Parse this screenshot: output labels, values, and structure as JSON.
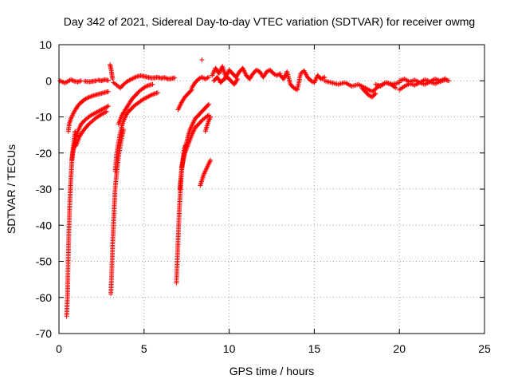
{
  "chart_data": {
    "type": "scatter",
    "title": "Day 342 of 2021, Sidereal Day-to-day VTEC variation (SDTVAR) for receiver owmg",
    "xlabel": "GPS time / hours",
    "ylabel": "SDTVAR / TECUs",
    "xlim": [
      0,
      25
    ],
    "ylim": [
      -70,
      10
    ],
    "xticks": [
      0,
      5,
      10,
      15,
      20,
      25
    ],
    "yticks": [
      10,
      0,
      -10,
      -20,
      -30,
      -40,
      -50,
      -60,
      -70
    ],
    "grid": true,
    "marker": "plus",
    "series": [
      {
        "name": "SDTVAR",
        "color": "#ff0000",
        "segments": [
          {
            "x": [
              0.05,
              0.2,
              0.35,
              0.5,
              0.7,
              0.9,
              1.1,
              1.3
            ],
            "y": [
              0.0,
              -0.3,
              -0.6,
              -0.2,
              0.3,
              -0.1,
              -0.3,
              0.0
            ]
          },
          {
            "x": [
              1.5,
              1.8,
              2.0,
              2.2
            ],
            "y": [
              -0.1,
              -0.3,
              -0.1,
              0.0
            ]
          },
          {
            "x": [
              2.3,
              2.5,
              2.7,
              2.9
            ],
            "y": [
              0.2,
              0.0,
              0.3,
              0.1
            ]
          },
          {
            "x": [
              0.45,
              0.5,
              0.52,
              0.55,
              0.58,
              0.62,
              0.66,
              0.7,
              0.75,
              0.8,
              0.85,
              0.9,
              0.95
            ],
            "y": [
              -65.2,
              -60.0,
              -55.0,
              -48.0,
              -42.0,
              -36.0,
              -31.0,
              -27.0,
              -23.0,
              -20.0,
              -18.0,
              -16.0,
              -14.0
            ]
          },
          {
            "x": [
              0.55,
              0.6,
              0.7,
              0.8,
              0.9,
              1.0,
              1.1,
              1.2,
              1.35,
              1.5,
              1.7,
              1.9,
              2.1,
              2.3,
              2.5,
              2.7,
              2.9
            ],
            "y": [
              -14.0,
              -12.0,
              -10.5,
              -9.5,
              -8.5,
              -7.8,
              -7.0,
              -6.4,
              -5.8,
              -5.2,
              -4.7,
              -4.3,
              -4.0,
              -3.7,
              -3.5,
              -3.2,
              -3.0
            ]
          },
          {
            "x": [
              0.75,
              0.85,
              0.95,
              1.05,
              1.15,
              1.3,
              1.5,
              1.7,
              1.9,
              2.1,
              2.3,
              2.5,
              2.7,
              2.9
            ],
            "y": [
              -22.0,
              -19.0,
              -17.0,
              -15.0,
              -13.5,
              -12.0,
              -11.0,
              -10.2,
              -9.5,
              -9.0,
              -8.5,
              -8.0,
              -7.5,
              -7.0
            ]
          },
          {
            "x": [
              1.0,
              1.2,
              1.4,
              1.6,
              1.8,
              2.0,
              2.2,
              2.4,
              2.6,
              2.8
            ],
            "y": [
              -18.0,
              -15.5,
              -14.0,
              -12.8,
              -11.8,
              -11.0,
              -10.2,
              -9.6,
              -9.0,
              -8.5
            ]
          },
          {
            "x": [
              3.0,
              3.05,
              3.1,
              3.15
            ],
            "y": [
              4.5,
              3.5,
              2.0,
              0.5
            ]
          },
          {
            "x": [
              3.05,
              3.1,
              3.15,
              3.2,
              3.25,
              3.3,
              3.4,
              3.5,
              3.6,
              3.7,
              3.8
            ],
            "y": [
              -59.0,
              -53.0,
              -46.0,
              -40.0,
              -35.0,
              -30.0,
              -25.0,
              -21.0,
              -18.0,
              -15.5,
              -13.5
            ]
          },
          {
            "x": [
              3.3,
              3.4,
              3.5,
              3.6,
              3.7,
              3.8,
              3.9,
              4.0,
              4.2,
              4.4,
              4.6,
              4.8,
              5.0,
              5.2,
              5.4,
              5.6,
              5.8
            ],
            "y": [
              -25.0,
              -20.0,
              -17.0,
              -14.5,
              -12.5,
              -11.0,
              -10.0,
              -9.0,
              -8.0,
              -7.0,
              -6.3,
              -5.6,
              -5.0,
              -4.5,
              -4.0,
              -3.6,
              -3.3
            ]
          },
          {
            "x": [
              3.5,
              3.7,
              3.9,
              4.1,
              4.3,
              4.5,
              4.7,
              4.9,
              5.1,
              5.3,
              5.5
            ],
            "y": [
              -12.0,
              -9.5,
              -8.0,
              -6.5,
              -5.0,
              -4.0,
              -3.0,
              -2.2,
              -1.6,
              -1.2,
              -1.0
            ]
          },
          {
            "x": [
              3.2,
              3.4,
              3.6,
              3.8,
              4.0,
              4.2,
              4.4,
              4.6,
              4.8,
              5.0,
              5.2,
              5.4,
              5.6,
              5.8,
              6.0,
              6.2,
              6.4,
              6.6,
              6.8
            ],
            "y": [
              -0.5,
              -1.2,
              -2.0,
              -1.0,
              -0.2,
              0.3,
              0.8,
              1.2,
              1.4,
              1.2,
              1.0,
              0.8,
              0.8,
              1.0,
              0.7,
              0.9,
              0.5,
              0.6,
              0.8
            ]
          },
          {
            "x": [
              6.9,
              6.95,
              7.0,
              7.05,
              7.1,
              7.15,
              7.2,
              7.3,
              7.4
            ],
            "y": [
              -56.0,
              -50.0,
              -44.0,
              -38.0,
              -33.0,
              -29.0,
              -25.0,
              -21.0,
              -18.0
            ]
          },
          {
            "x": [
              7.1,
              7.2,
              7.3,
              7.4,
              7.5,
              7.6,
              7.7,
              7.8,
              7.9,
              8.0,
              8.2,
              8.4,
              8.6,
              8.8
            ],
            "y": [
              -30.0,
              -25.0,
              -22.0,
              -19.0,
              -17.0,
              -15.0,
              -13.5,
              -12.5,
              -11.5,
              -10.5,
              -9.5,
              -8.5,
              -7.5,
              -6.5
            ]
          },
          {
            "x": [
              7.2,
              7.4,
              7.6,
              7.8,
              8.0,
              8.2,
              8.4,
              8.6,
              8.8
            ],
            "y": [
              -24.0,
              -20.0,
              -17.5,
              -15.0,
              -13.0,
              -12.0,
              -11.0,
              -10.2,
              -9.5
            ]
          },
          {
            "x": [
              7.0,
              7.2,
              7.4,
              7.6,
              7.8
            ],
            "y": [
              -8.0,
              -6.0,
              -4.5,
              -3.5,
              -2.5
            ]
          },
          {
            "x": [
              7.8,
              8.0,
              8.2,
              8.4,
              8.6,
              8.8
            ],
            "y": [
              -2.0,
              -0.5,
              0.5,
              1.0,
              0.5,
              1.0
            ]
          },
          {
            "x": [
              8.3,
              8.4,
              8.5,
              8.6,
              8.7,
              8.8,
              8.9
            ],
            "y": [
              -29.0,
              -27.5,
              -26.0,
              -25.0,
              -24.0,
              -23.0,
              -22.0
            ]
          },
          {
            "x": [
              8.6,
              8.7,
              8.8,
              8.9
            ],
            "y": [
              -14.0,
              -12.5,
              -11.0,
              -10.0
            ]
          },
          {
            "x": [
              8.4
            ],
            "y": [
              5.8
            ]
          },
          {
            "x": [
              9.0,
              9.2,
              9.4,
              9.6,
              9.8,
              10.0,
              10.2,
              10.4,
              10.6,
              10.8,
              11.0,
              11.2,
              11.4,
              11.6,
              11.8,
              12.0,
              12.2,
              12.4,
              12.6,
              12.8,
              13.0
            ],
            "y": [
              1.5,
              3.5,
              2.0,
              4.0,
              1.0,
              3.0,
              2.0,
              1.0,
              2.5,
              3.5,
              1.5,
              0.5,
              2.0,
              3.0,
              2.5,
              1.0,
              2.5,
              3.0,
              2.0,
              1.5,
              2.0
            ]
          },
          {
            "x": [
              9.1,
              9.3,
              9.5,
              9.7,
              9.9,
              10.1,
              10.3,
              10.5
            ],
            "y": [
              0.0,
              1.0,
              -0.5,
              0.5,
              1.0,
              0.0,
              -1.0,
              0.5
            ]
          },
          {
            "x": [
              13.0,
              13.2,
              13.4,
              13.6,
              13.8,
              14.0,
              14.2,
              14.4,
              14.6,
              14.8,
              15.0,
              15.2,
              15.4,
              15.6
            ],
            "y": [
              1.5,
              0.5,
              2.5,
              -1.0,
              -2.0,
              -2.5,
              2.0,
              2.8,
              1.0,
              0.0,
              -0.5,
              1.5,
              0.5,
              1.0
            ]
          },
          {
            "x": [
              15.6,
              16.0,
              16.4,
              16.8,
              17.2,
              17.6,
              18.0,
              18.4,
              18.8,
              19.2,
              19.6,
              20.0
            ],
            "y": [
              0.0,
              -0.5,
              -1.0,
              -0.5,
              -1.5,
              -1.0,
              -2.0,
              -3.0,
              -1.5,
              -0.5,
              -1.0,
              -0.5
            ]
          },
          {
            "x": [
              17.8,
              18.0,
              18.2,
              18.4,
              18.6
            ],
            "y": [
              -2.0,
              -3.0,
              -4.0,
              -4.5,
              -3.5
            ]
          },
          {
            "x": [
              18.6,
              18.9,
              19.2,
              19.5,
              19.8
            ],
            "y": [
              -1.0,
              -1.5,
              -0.5,
              -1.0,
              -2.0
            ]
          },
          {
            "x": [
              20.0,
              20.3,
              20.6,
              20.9,
              21.2,
              21.5,
              21.8,
              22.1,
              22.4,
              22.7,
              22.9
            ],
            "y": [
              -2.5,
              -1.5,
              -0.8,
              -1.2,
              -0.5,
              -1.0,
              -0.3,
              -0.8,
              -0.2,
              0.3,
              0.0
            ]
          },
          {
            "x": [
              20.0,
              20.3,
              20.6,
              20.9,
              21.2,
              21.5,
              21.8,
              22.1,
              22.4,
              22.7
            ],
            "y": [
              0.0,
              0.5,
              -0.3,
              0.2,
              -0.5,
              0.3,
              -0.2,
              0.5,
              0.0,
              0.6
            ]
          }
        ]
      }
    ]
  }
}
